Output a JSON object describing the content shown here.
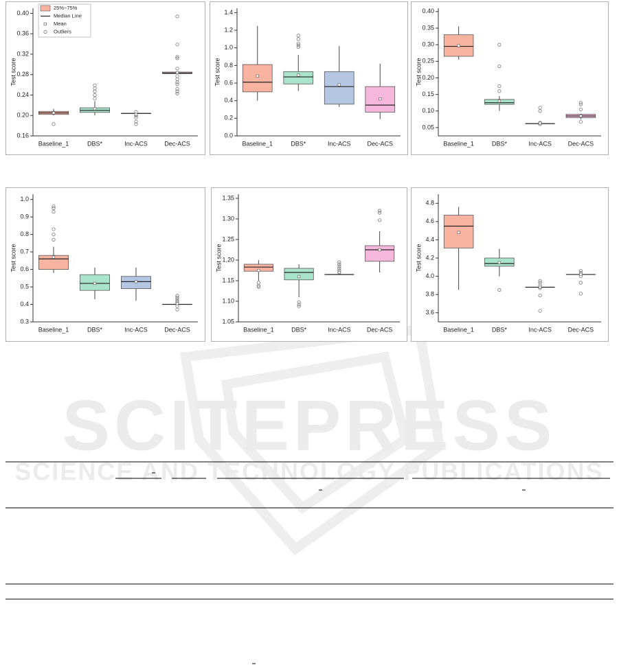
{
  "chart_data": [
    {
      "type": "box",
      "y_label": "Test score",
      "categories": [
        "Baseline_1",
        "DBS*",
        "Inc-ACS",
        "Dec-ACS"
      ],
      "colors": [
        "#f9b3a1",
        "#a9e3cb",
        "#b4c6e2",
        "#f5b8dc"
      ],
      "ylim": [
        0.16,
        0.41
      ],
      "yticks": [
        0.16,
        {
          "value": 0.2,
          "label": "0.20"
        },
        0.24,
        0.28,
        0.32,
        0.36,
        {
          "value": 0.4,
          "label": "0.40"
        }
      ],
      "legend": [
        "25%~75%",
        "Median Line",
        "Mean",
        "Outliers"
      ],
      "whisker_low": [
        0.2,
        0.2,
        0.204,
        0.282
      ],
      "q1": [
        0.202,
        0.206,
        0.204,
        0.282
      ],
      "median": [
        0.205,
        0.21,
        0.204,
        0.283
      ],
      "q3": [
        0.208,
        0.215,
        0.204,
        0.285
      ],
      "whisker_high": [
        0.213,
        0.228,
        0.204,
        0.286
      ],
      "mean": [
        0.205,
        0.213,
        0.202,
        0.284
      ],
      "outliers": [
        [
          0.183
        ],
        [
          0.233,
          0.24,
          0.247,
          0.253,
          0.259
        ],
        [
          0.183,
          0.188,
          0.196,
          0.2,
          0.207
        ],
        [
          0.394,
          0.339,
          0.315,
          0.312,
          0.292,
          0.277,
          0.271,
          0.265,
          0.261,
          0.252,
          0.247,
          0.243
        ]
      ]
    },
    {
      "type": "box",
      "y_label": "Test score",
      "categories": [
        "Baseline_1",
        "DBS*",
        "Inc-ACS",
        "Dec-ACS"
      ],
      "colors": [
        "#f9b3a1",
        "#a9e3cb",
        "#b4c6e2",
        "#f5b8dc"
      ],
      "ylim": [
        0,
        1.45
      ],
      "yticks": [
        {
          "value": 0,
          "label": "0.0"
        },
        0.2,
        0.4,
        0.6,
        0.8,
        {
          "value": 1,
          "label": "1.0"
        },
        1.2,
        1.4
      ],
      "whisker_low": [
        0.4,
        0.51,
        0.33,
        0.19
      ],
      "q1": [
        0.5,
        0.59,
        0.36,
        0.27
      ],
      "median": [
        0.61,
        0.67,
        0.56,
        0.35
      ],
      "q3": [
        0.81,
        0.73,
        0.73,
        0.56
      ],
      "whisker_high": [
        1.25,
        0.92,
        1.02,
        0.82
      ],
      "mean": [
        0.68,
        0.69,
        0.58,
        0.42
      ],
      "outliers": [
        [],
        [
          1.01,
          1.03,
          1.05,
          1.1,
          1.14
        ],
        [],
        []
      ]
    },
    {
      "type": "box",
      "y_label": "Test score",
      "categories": [
        "Baseline_1",
        "DBS*",
        "Inc-ACS",
        "Dec-ACS"
      ],
      "colors": [
        "#f9b3a1",
        "#a9e3cb",
        "#b4c6e2",
        "#f5b8dc"
      ],
      "ylim": [
        0.025,
        0.41
      ],
      "yticks": [
        0.05,
        {
          "value": 0.1,
          "label": "0.10"
        },
        0.15,
        {
          "value": 0.2,
          "label": "0.20"
        },
        0.25,
        {
          "value": 0.3,
          "label": "0.30"
        },
        0.35,
        {
          "value": 0.4,
          "label": "0.40"
        }
      ],
      "whisker_low": [
        0.255,
        0.1,
        0.062,
        0.075
      ],
      "q1": [
        0.265,
        0.12,
        0.062,
        0.08
      ],
      "median": [
        0.295,
        0.125,
        0.062,
        0.085
      ],
      "q3": [
        0.33,
        0.135,
        0.062,
        0.09
      ],
      "whisker_high": [
        0.355,
        0.145,
        0.062,
        0.092
      ],
      "mean": [
        0.297,
        0.13,
        0.063,
        0.085
      ],
      "outliers": [
        [],
        [
          0.16,
          0.175,
          0.235,
          0.3
        ],
        [
          0.06,
          0.065,
          0.1,
          0.11
        ],
        [
          0.067,
          0.105,
          0.12,
          0.125
        ]
      ]
    },
    {
      "type": "box",
      "y_label": "Test score",
      "categories": [
        "Baseline_1",
        "DBS*",
        "Inc-ACS",
        "Dec-ACS"
      ],
      "colors": [
        "#f9b3a1",
        "#a9e3cb",
        "#b4c6e2",
        "#f5b8dc"
      ],
      "ylim": [
        0.3,
        1.03
      ],
      "yticks": [
        0.3,
        0.4,
        0.5,
        0.6,
        0.7,
        0.8,
        0.9,
        {
          "value": 1,
          "label": "1.0"
        }
      ],
      "whisker_low": [
        0.58,
        0.43,
        0.42,
        0.4
      ],
      "q1": [
        0.6,
        0.48,
        0.49,
        0.4
      ],
      "median": [
        0.66,
        0.52,
        0.53,
        0.4
      ],
      "q3": [
        0.68,
        0.57,
        0.56,
        0.4
      ],
      "whisker_high": [
        0.73,
        0.61,
        0.61,
        0.4
      ],
      "mean": [
        0.67,
        0.52,
        0.53,
        0.405
      ],
      "outliers": [
        [
          0.77,
          0.8,
          0.83,
          0.93,
          0.95,
          0.96
        ],
        [],
        [],
        [
          0.37,
          0.39,
          0.41,
          0.42,
          0.43,
          0.44,
          0.45
        ]
      ]
    },
    {
      "type": "box",
      "y_label": "Test score",
      "categories": [
        "Baseline_1",
        "DBS*",
        "Inc-ACS",
        "Dec-ACS"
      ],
      "colors": [
        "#f9b3a1",
        "#a9e3cb",
        "#b4c6e2",
        "#f5b8dc"
      ],
      "ylim": [
        1.05,
        1.36
      ],
      "yticks": [
        1.05,
        {
          "value": 1.1,
          "label": "1.10"
        },
        1.15,
        {
          "value": 1.2,
          "label": "1.20"
        },
        1.25,
        {
          "value": 1.3,
          "label": "1.30"
        },
        1.35
      ],
      "whisker_low": [
        1.15,
        1.11,
        1.165,
        1.17
      ],
      "q1": [
        1.173,
        1.152,
        1.165,
        1.197
      ],
      "median": [
        1.183,
        1.17,
        1.165,
        1.225
      ],
      "q3": [
        1.19,
        1.18,
        1.165,
        1.235
      ],
      "whisker_high": [
        1.2,
        1.19,
        1.165,
        1.27
      ],
      "mean": [
        1.175,
        1.16,
        1.17,
        1.225
      ],
      "outliers": [
        [
          1.135,
          1.138,
          1.145
        ],
        [
          1.088,
          1.092,
          1.098
        ],
        [
          1.17,
          1.175,
          1.18,
          1.185,
          1.19,
          1.195
        ],
        [
          1.297,
          1.315,
          1.32
        ]
      ]
    },
    {
      "type": "box",
      "y_label": "Test score",
      "categories": [
        "Baseline_1",
        "DBS*",
        "Inc-ACS",
        "Dec-ACS"
      ],
      "colors": [
        "#f9b3a1",
        "#a9e3cb",
        "#b4c6e2",
        "#f5b8dc"
      ],
      "ylim": [
        3.5,
        4.9
      ],
      "yticks": [
        3.6,
        3.8,
        {
          "value": 4,
          "label": "4.0"
        },
        4.2,
        4.4,
        4.6,
        4.8
      ],
      "whisker_low": [
        3.85,
        4.0,
        3.88,
        4.02
      ],
      "q1": [
        4.31,
        4.11,
        3.88,
        4.02
      ],
      "median": [
        4.55,
        4.14,
        3.88,
        4.02
      ],
      "q3": [
        4.67,
        4.2,
        3.88,
        4.02
      ],
      "whisker_high": [
        4.76,
        4.3,
        3.88,
        4.02
      ],
      "mean": [
        4.48,
        4.15,
        3.88,
        4.02
      ],
      "outliers": [
        [],
        [
          3.85
        ],
        [
          3.62,
          3.79,
          3.87,
          3.9,
          3.93,
          3.95
        ],
        [
          3.81,
          3.93,
          4.0,
          4.04,
          4.06
        ]
      ]
    }
  ],
  "watermark": {
    "title": "SCITEPRESS",
    "subtitle": "SCIENCE AND TECHNOLOGY PUBLICATIONS"
  }
}
